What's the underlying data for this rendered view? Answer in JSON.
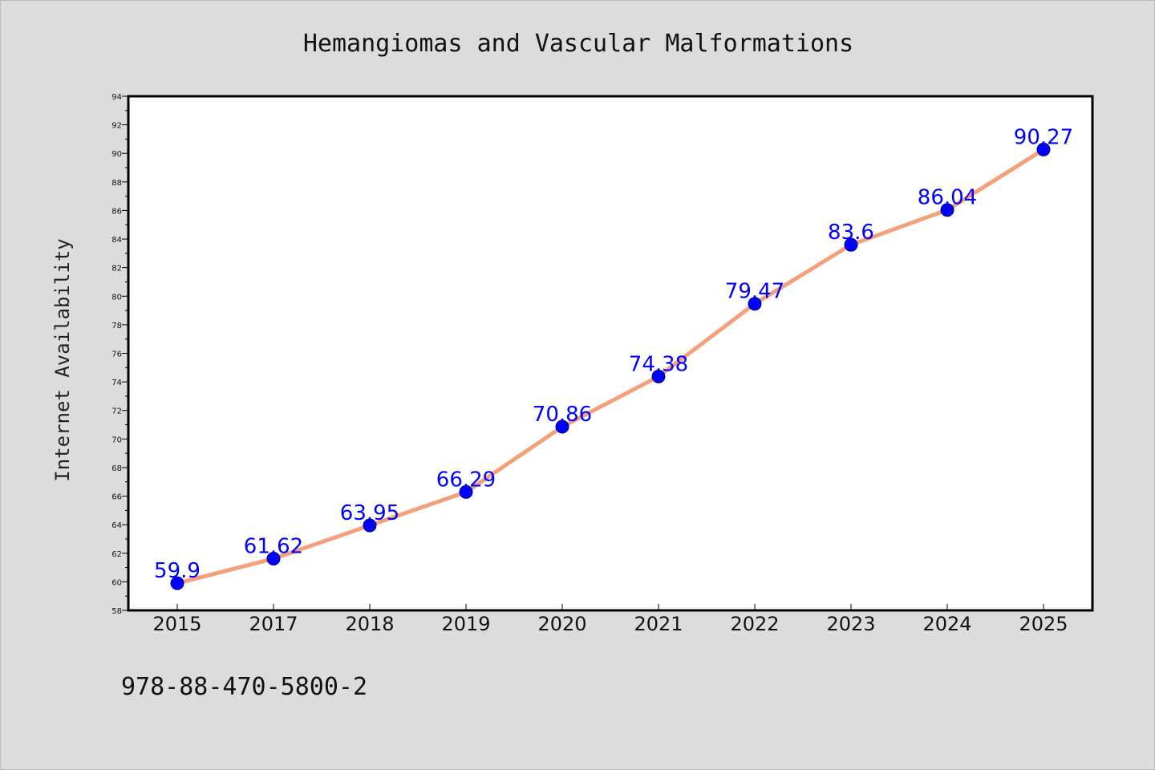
{
  "colors": {
    "background": "#dcdcdc",
    "plot_background": "#ffffff",
    "line": "#f4a07a",
    "marker_fill": "#0000ff",
    "marker_edge": "#000080",
    "data_label": "#0000ff"
  },
  "footer": {
    "code": "978-88-470-5800-2"
  },
  "chart_data": {
    "type": "line",
    "title": "Hemangiomas and Vascular Malformations",
    "xlabel": "",
    "ylabel": "Internet Availability",
    "categories": [
      "2015",
      "2017",
      "2018",
      "2019",
      "2020",
      "2021",
      "2022",
      "2023",
      "2024",
      "2025"
    ],
    "series": [
      {
        "values": [
          59.9,
          61.62,
          63.95,
          66.29,
          70.86,
          74.38,
          79.47,
          83.6,
          86.04,
          90.27
        ],
        "labels": [
          "59.9",
          "61.62",
          "63.95",
          "66.29",
          "70.86",
          "74.38",
          "79.47",
          "83.6",
          "86.04",
          "90.27"
        ]
      }
    ],
    "ylim": [
      58,
      94
    ],
    "yticks": [
      "58",
      "60",
      "62",
      "64",
      "66",
      "68",
      "70",
      "72",
      "74",
      "76",
      "78",
      "80",
      "82",
      "84",
      "86",
      "88",
      "90",
      "92",
      "94"
    ],
    "grid": false,
    "legend": "none"
  }
}
